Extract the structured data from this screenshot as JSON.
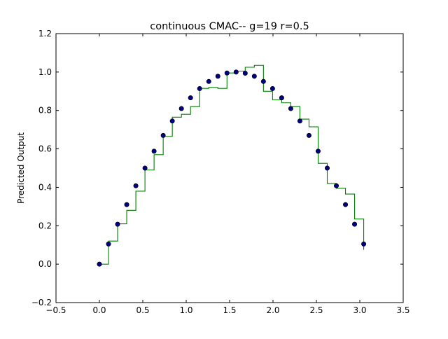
{
  "chart_data": {
    "type": "scatter",
    "title": "continuous CMAC-- g=19 r=0.5",
    "xlabel": "",
    "ylabel": "Predicted Output",
    "xlim": [
      -0.5,
      3.5
    ],
    "ylim": [
      -0.2,
      1.2
    ],
    "xticks": [
      -0.5,
      0.0,
      0.5,
      1.0,
      1.5,
      2.0,
      2.5,
      3.0,
      3.5
    ],
    "yticks": [
      -0.2,
      0.0,
      0.2,
      0.4,
      0.6,
      0.8,
      1.0,
      1.2
    ],
    "xtick_labels": [
      "−0.5",
      "0.0",
      "0.5",
      "1.0",
      "1.5",
      "2.0",
      "2.5",
      "3.0",
      "3.5"
    ],
    "ytick_labels": [
      "−0.2",
      "0.0",
      "0.2",
      "0.4",
      "0.6",
      "0.8",
      "1.0",
      "1.2"
    ],
    "grid": false,
    "series": [
      {
        "kind": "scatter",
        "color": "#000080",
        "x": [
          0.0,
          0.105,
          0.21,
          0.315,
          0.42,
          0.525,
          0.63,
          0.735,
          0.84,
          0.945,
          1.05,
          1.155,
          1.26,
          1.365,
          1.47,
          1.575,
          1.68,
          1.785,
          1.89,
          1.995,
          2.1,
          2.205,
          2.31,
          2.415,
          2.52,
          2.625,
          2.73,
          2.835,
          2.94,
          3.045
        ],
        "y": [
          0.0,
          0.105,
          0.208,
          0.31,
          0.408,
          0.5,
          0.588,
          0.67,
          0.745,
          0.81,
          0.866,
          0.914,
          0.951,
          0.978,
          0.995,
          1.0,
          0.994,
          0.978,
          0.951,
          0.914,
          0.866,
          0.81,
          0.745,
          0.67,
          0.588,
          0.5,
          0.408,
          0.31,
          0.208,
          0.105
        ]
      },
      {
        "kind": "step",
        "color": "#008000",
        "x": [
          0.0,
          0.105,
          0.21,
          0.315,
          0.42,
          0.525,
          0.63,
          0.735,
          0.84,
          0.945,
          1.05,
          1.155,
          1.26,
          1.365,
          1.47,
          1.575,
          1.68,
          1.785,
          1.89,
          1.995,
          2.1,
          2.205,
          2.31,
          2.415,
          2.52,
          2.625,
          2.73,
          2.835,
          2.94,
          3.045
        ],
        "y": [
          0.0,
          0.12,
          0.21,
          0.28,
          0.38,
          0.49,
          0.57,
          0.665,
          0.765,
          0.78,
          0.82,
          0.915,
          0.92,
          0.915,
          0.995,
          1.005,
          1.025,
          1.035,
          0.9,
          0.855,
          0.84,
          0.82,
          0.755,
          0.715,
          0.525,
          0.42,
          0.395,
          0.365,
          0.235,
          0.075
        ]
      }
    ]
  }
}
